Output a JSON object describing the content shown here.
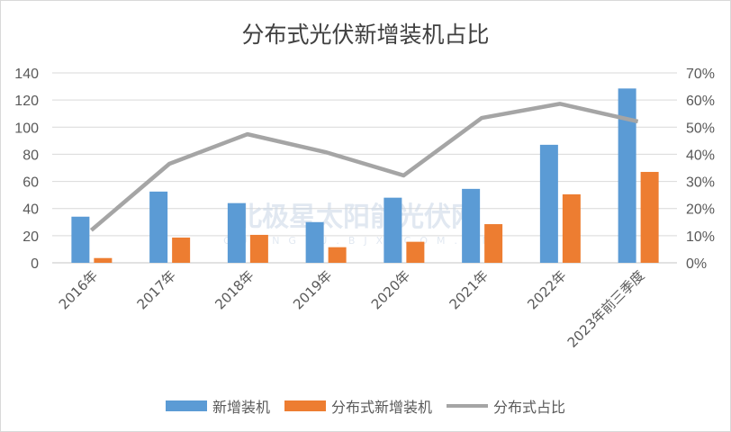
{
  "chart_data": {
    "type": "bar+line",
    "title": "分布式光伏新增装机占比",
    "categories": [
      "2016年",
      "2017年",
      "2018年",
      "2019年",
      "2020年",
      "2021年",
      "2022年",
      "2023年前三季度"
    ],
    "series": [
      {
        "name": "新增装机",
        "type": "bar",
        "axis": "left",
        "color": "#5b9bd5",
        "values": [
          34,
          52.5,
          44,
          30,
          48,
          54.5,
          87,
          128.5
        ]
      },
      {
        "name": "分布式新增装机",
        "type": "bar",
        "axis": "left",
        "color": "#ed7d31",
        "values": [
          3.5,
          18.6,
          20.6,
          11.5,
          15.5,
          28.5,
          50.5,
          67
        ]
      },
      {
        "name": "分布式占比",
        "type": "line",
        "axis": "right",
        "color": "#a5a5a5",
        "values": [
          12,
          36.5,
          47.4,
          40.8,
          32.2,
          53.4,
          58.6,
          52.1
        ]
      }
    ],
    "left_axis": {
      "min": 0,
      "max": 140,
      "step": 20,
      "ticks": [
        "0",
        "20",
        "40",
        "60",
        "80",
        "100",
        "120",
        "140"
      ]
    },
    "right_axis": {
      "min": 0,
      "max": 70,
      "step": 10,
      "ticks": [
        "0%",
        "10%",
        "20%",
        "30%",
        "40%",
        "50%",
        "60%",
        "70%"
      ]
    },
    "grid": true,
    "legend": "bottom",
    "watermark": "北极星太阳能光伏网 GUANGFU.BJX.COM.CN"
  }
}
